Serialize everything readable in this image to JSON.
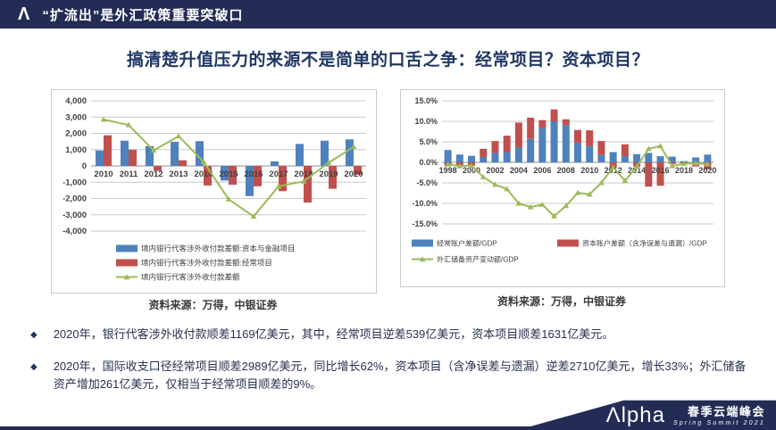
{
  "header": {
    "title": "“扩流出”是外汇政策重要突破口",
    "logo_glyph": "Λ"
  },
  "slide_title": "搞清楚升值压力的来源不是简单的口舌之争：经常项目？资本项目？",
  "sources": {
    "left": "资料来源：万得，中银证券",
    "right": "资料来源：万得，中银证券"
  },
  "bullets": {
    "marker": "◆",
    "items": [
      "2020年，银行代客涉外收付款顺差1169亿美元，其中，经常项目逆差539亿美元，资本项目顺差1631亿美元。",
      "2020年，国际收支口径经常项目顺差2989亿美元，同比增长62%，资本项目（含净误差与遗漏）逆差2710亿美元，增长33%；外汇储备资产增加261亿美元，仅相当于经常项目顺差的9%。"
    ]
  },
  "footer": {
    "brand": "Λlpha",
    "event_cn": "春季云端峰会",
    "event_en": "Spring Summit 2021"
  },
  "colors": {
    "navy": "#232C54",
    "title_text": "#1F3864",
    "bar_blue": "#4F81BD",
    "bar_red": "#C0504D",
    "line_green": "#9BBB59",
    "grid": "#c9c9c9",
    "axis_text": "#404040"
  },
  "chart_data": [
    {
      "type": "bar",
      "bar_mode": "grouped",
      "categories": [
        "2010",
        "2011",
        "2012",
        "2013",
        "2014",
        "2015",
        "2016",
        "2017",
        "2018",
        "2019",
        "2020"
      ],
      "series": [
        {
          "name": "境内银行代客涉外收付款差额:资本与金融项目",
          "type": "bar",
          "color": "#4F81BD",
          "values": [
            950,
            1550,
            1220,
            1480,
            1520,
            -900,
            -1850,
            280,
            1350,
            1550,
            1631
          ]
        },
        {
          "name": "境内银行代客涉外收付款差额:经常项目",
          "type": "bar",
          "color": "#C0504D",
          "values": [
            1880,
            1000,
            -300,
            350,
            -1200,
            -1150,
            -1250,
            -1550,
            -2250,
            -1400,
            -539
          ]
        },
        {
          "name": "境内银行代客涉外收付款差额",
          "type": "line",
          "color": "#9BBB59",
          "values": [
            2850,
            2520,
            950,
            1830,
            250,
            -2050,
            -3100,
            -1250,
            -950,
            200,
            1169
          ]
        }
      ],
      "ylim": [
        -4000,
        4000
      ],
      "yticks": [
        4000,
        3000,
        2000,
        1000,
        0,
        -1000,
        -2000,
        -3000,
        -4000
      ],
      "ytick_labels": [
        "4,000",
        "3,000",
        "2,000",
        "1,000",
        "0",
        "-1,000",
        "-2,000",
        "-3,000",
        "-4,000"
      ],
      "x_label_every": 1,
      "grid": true,
      "legend_position": "bottom"
    },
    {
      "type": "bar",
      "bar_mode": "stacked",
      "categories": [
        "1998",
        "1999",
        "2000",
        "2001",
        "2002",
        "2003",
        "2004",
        "2005",
        "2006",
        "2007",
        "2008",
        "2009",
        "2010",
        "2011",
        "2012",
        "2013",
        "2014",
        "2015",
        "2016",
        "2017",
        "2018",
        "2019",
        "2020"
      ],
      "series": [
        {
          "name": "经常账户差额/GDP",
          "type": "bar",
          "color": "#4F81BD",
          "values": [
            3.0,
            1.9,
            1.6,
            1.3,
            2.3,
            2.5,
            3.6,
            5.7,
            8.4,
            10.0,
            9.1,
            4.8,
            4.0,
            1.8,
            2.5,
            1.5,
            2.0,
            2.3,
            1.5,
            1.4,
            0.3,
            1.2,
            1.9
          ]
        },
        {
          "name": "资本账户差额（含净误差与遗漏）/GDP",
          "type": "bar",
          "color": "#C0504D",
          "values": [
            -0.8,
            -0.9,
            -0.8,
            2.0,
            2.9,
            4.0,
            6.1,
            5.2,
            1.9,
            2.9,
            1.4,
            3.1,
            3.8,
            3.4,
            -1.4,
            2.9,
            -1.0,
            -5.9,
            -5.7,
            -0.4,
            -0.3,
            -1.0,
            -1.7
          ]
        },
        {
          "name": "外汇储备资产变动额/GDP",
          "type": "line",
          "color": "#9BBB59",
          "values": [
            -0.5,
            -0.9,
            -0.8,
            -3.6,
            -5.4,
            -6.5,
            -10.0,
            -10.9,
            -10.3,
            -13.1,
            -10.6,
            -7.4,
            -7.8,
            -5.0,
            -1.2,
            -4.5,
            -1.0,
            3.3,
            4.0,
            -0.9,
            -0.3,
            -0.2,
            -0.4
          ]
        }
      ],
      "ylim": [
        -15,
        15
      ],
      "yticks": [
        15,
        10,
        5,
        0,
        -5,
        -10,
        -15
      ],
      "ytick_labels": [
        "15.0%",
        "10.0%",
        "5.0%",
        "0.0%",
        "-5.0%",
        "-10.0%",
        "-15.0%"
      ],
      "x_label_every": 2,
      "grid": true,
      "legend_position": "bottom"
    }
  ]
}
